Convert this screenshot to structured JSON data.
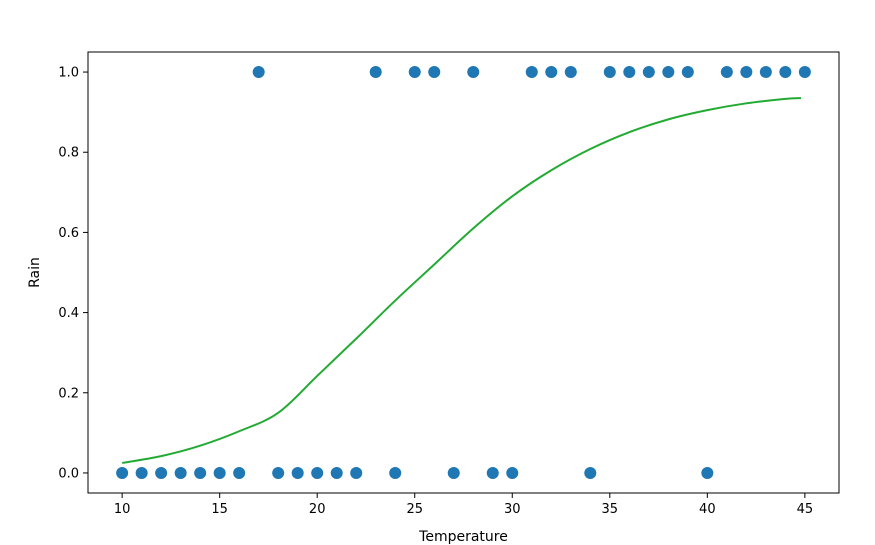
{
  "chart_data": {
    "type": "scatter",
    "title": "",
    "xlabel": "Temperature",
    "ylabel": "Rain",
    "xlim": [
      8.25,
      46.75
    ],
    "ylim": [
      -0.05,
      1.05
    ],
    "xticks": [
      10,
      15,
      20,
      25,
      30,
      35,
      40,
      45
    ],
    "yticks": [
      0.0,
      0.2,
      0.4,
      0.6,
      0.8,
      1.0
    ],
    "xtick_labels": [
      "10",
      "15",
      "20",
      "25",
      "30",
      "35",
      "40",
      "45"
    ],
    "ytick_labels": [
      "0.0",
      "0.2",
      "0.4",
      "0.6",
      "0.8",
      "1.0"
    ],
    "grid": false,
    "colors": {
      "points": "#1f77b4",
      "curve": "#22aa33"
    },
    "series": [
      {
        "kind": "scatter",
        "x": [
          10,
          11,
          12,
          13,
          14,
          15,
          16,
          17,
          18,
          19,
          20,
          21,
          22,
          23,
          24,
          25,
          26,
          27,
          28,
          29,
          30,
          31,
          32,
          33,
          34,
          35,
          36,
          37,
          38,
          39,
          40,
          41,
          42,
          43,
          44,
          45
        ],
        "y": [
          0,
          0,
          0,
          0,
          0,
          0,
          0,
          1,
          0,
          0,
          0,
          0,
          0,
          1,
          0,
          1,
          1,
          0,
          1,
          0,
          0,
          1,
          1,
          1,
          0,
          1,
          1,
          1,
          1,
          1,
          0,
          1,
          1,
          1,
          1,
          1
        ]
      },
      {
        "kind": "line",
        "x": [
          10,
          12,
          14,
          16,
          18,
          20,
          22,
          24,
          26,
          28,
          30,
          32,
          34,
          36,
          38,
          40,
          42,
          44,
          44.8
        ],
        "y": [
          0.025,
          0.042,
          0.068,
          0.104,
          0.15,
          0.242,
          0.335,
          0.43,
          0.52,
          0.61,
          0.69,
          0.755,
          0.808,
          0.85,
          0.882,
          0.905,
          0.922,
          0.933,
          0.935
        ]
      }
    ]
  }
}
